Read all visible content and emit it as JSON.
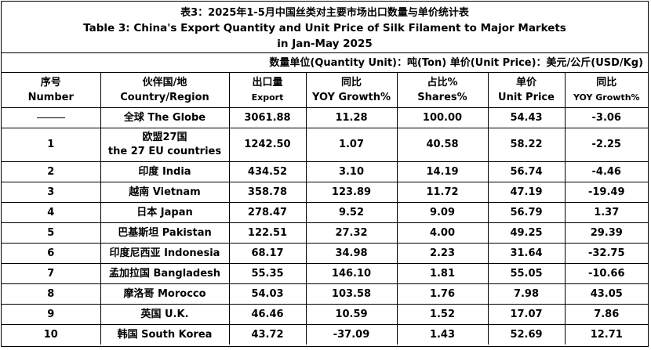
{
  "title": {
    "cn": "表3：2025年1-5月中国丝类对主要市场出口数量与单价统计表",
    "en_line1": "Table 3: China's Export Quantity and Unit Price of Silk Filament to Major Markets",
    "en_line2": "in Jan-May 2025"
  },
  "unit_note": "数量单位(Quantity Unit)：吨(Ton) 单价(Unit Price)：美元/公斤(USD/Kg)",
  "headers": [
    {
      "cn": "序号",
      "en": "Number"
    },
    {
      "cn": "伙伴国/地",
      "en": "Country/Region"
    },
    {
      "cn": "出口量",
      "en": "Export"
    },
    {
      "cn": "同比",
      "en": "YOY Growth%"
    },
    {
      "cn": "占比%",
      "en": "Shares%"
    },
    {
      "cn": "单价",
      "en": "Unit Price"
    },
    {
      "cn": "同比",
      "en": "YOY Growth%"
    }
  ],
  "rows": [
    {
      "number": "——",
      "country": "全球 The Globe",
      "export": "3061.88",
      "yoy": "11.28",
      "share": "100.00",
      "price": "54.43",
      "price_yoy": "-3.06"
    },
    {
      "number": "1",
      "country_l1": "欧盟27国",
      "country_l2": "the 27 EU countries",
      "export": "1242.50",
      "yoy": "1.07",
      "share": "40.58",
      "price": "58.22",
      "price_yoy": "-2.25"
    },
    {
      "number": "2",
      "country": "印度 India",
      "export": "434.52",
      "yoy": "3.10",
      "share": "14.19",
      "price": "56.74",
      "price_yoy": "-4.46"
    },
    {
      "number": "3",
      "country": "越南 Vietnam",
      "export": "358.78",
      "yoy": "123.89",
      "share": "11.72",
      "price": "47.19",
      "price_yoy": "-19.49"
    },
    {
      "number": "4",
      "country": "日本 Japan",
      "export": "278.47",
      "yoy": "9.52",
      "share": "9.09",
      "price": "56.79",
      "price_yoy": "1.37"
    },
    {
      "number": "5",
      "country": "巴基斯坦 Pakistan",
      "export": "122.51",
      "yoy": "27.32",
      "share": "4.00",
      "price": "49.25",
      "price_yoy": "29.39"
    },
    {
      "number": "6",
      "country": "印度尼西亚 Indonesia",
      "export": "68.17",
      "yoy": "34.98",
      "share": "2.23",
      "price": "31.64",
      "price_yoy": "-32.75"
    },
    {
      "number": "7",
      "country": "孟加拉国 Bangladesh",
      "export": "55.35",
      "yoy": "146.10",
      "share": "1.81",
      "price": "55.05",
      "price_yoy": "-10.66"
    },
    {
      "number": "8",
      "country": "摩洛哥 Morocco",
      "export": "54.03",
      "yoy": "103.58",
      "share": "1.76",
      "price": "7.98",
      "price_yoy": "43.05"
    },
    {
      "number": "9",
      "country": "英国 U.K.",
      "export": "46.46",
      "yoy": "10.59",
      "share": "1.52",
      "price": "17.07",
      "price_yoy": "7.86"
    },
    {
      "number": "10",
      "country": "韩国 South Korea",
      "export": "43.72",
      "yoy": "-37.09",
      "share": "1.43",
      "price": "52.69",
      "price_yoy": "12.71"
    }
  ]
}
